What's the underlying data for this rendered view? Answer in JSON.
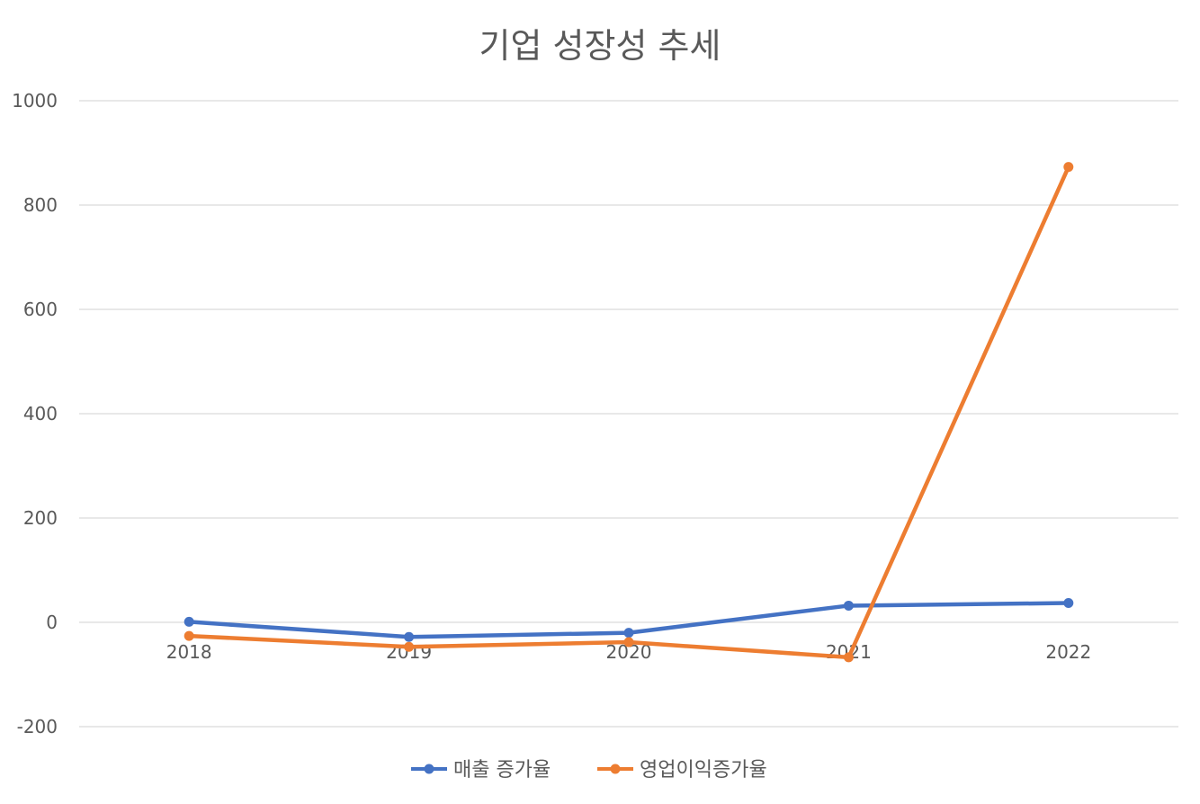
{
  "chart_data": {
    "type": "line",
    "title": "기업 성장성 추세",
    "categories": [
      "2018",
      "2019",
      "2020",
      "2021",
      "2022"
    ],
    "y_ticks": [
      "1000",
      "800",
      "600",
      "400",
      "200",
      "0",
      "-200"
    ],
    "ylim": [
      -200,
      1000
    ],
    "grid": true,
    "legend_position": "bottom",
    "series": [
      {
        "name": "매출 증가율",
        "color": "#4472C4",
        "values": [
          1,
          -28,
          -20,
          32,
          37
        ]
      },
      {
        "name": "영업이익증가율",
        "color": "#ED7D31",
        "values": [
          -26,
          -47,
          -38,
          -67,
          873
        ]
      }
    ]
  }
}
